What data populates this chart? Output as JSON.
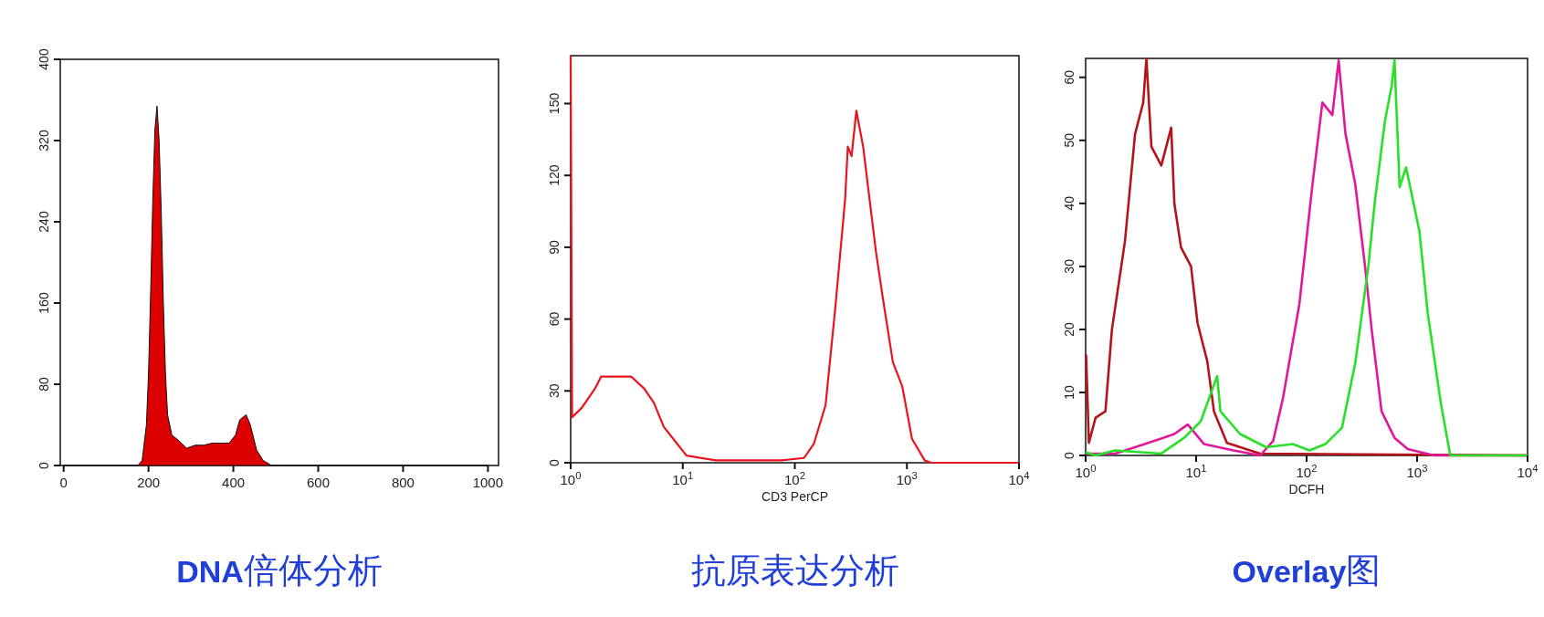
{
  "chart_data": [
    {
      "type": "area",
      "title": "DNA倍体分析",
      "xlim": [
        -8,
        1025
      ],
      "ylim": [
        0,
        400
      ],
      "xticks": [
        0,
        200,
        400,
        600,
        800,
        1000
      ],
      "yticks": [
        0,
        80,
        160,
        240,
        320,
        400
      ],
      "x": [
        0,
        175,
        185,
        195,
        200,
        205,
        210,
        215,
        220,
        225,
        230,
        235,
        240,
        245,
        255,
        270,
        290,
        310,
        330,
        350,
        370,
        390,
        405,
        415,
        430,
        440,
        455,
        470,
        490,
        1000
      ],
      "series": [
        {
          "color": "#dd0000",
          "values": [
            0,
            0,
            5,
            40,
            90,
            170,
            260,
            330,
            354,
            320,
            250,
            160,
            90,
            50,
            30,
            25,
            17,
            20,
            20,
            22,
            22,
            22,
            30,
            45,
            50,
            40,
            15,
            5,
            0,
            0
          ]
        }
      ]
    },
    {
      "type": "line",
      "title": "抗原表达分析",
      "xlabel": "CD3 PerCP",
      "log": "x",
      "xlim": [
        1,
        10000
      ],
      "ylim": [
        0,
        170
      ],
      "xticks": [
        {
          "value": 1,
          "label": "10$^{0}$"
        },
        {
          "value": 10,
          "label": "10$^{1}$"
        },
        {
          "value": 100,
          "label": "10$^{2}$"
        },
        {
          "value": 1000,
          "label": "10$^{3}$"
        },
        {
          "value": 10000,
          "label": "10$^{4}$"
        }
      ],
      "yticks": [
        0,
        30,
        60,
        90,
        120,
        150
      ],
      "x": [
        1,
        1.03,
        1.26,
        1.65,
        1.87,
        2.47,
        3.46,
        4.52,
        5.53,
        6.77,
        8.88,
        10.8,
        19.8,
        75.8,
        121,
        148,
        188,
        230,
        281,
        297,
        321,
        354,
        407,
        530,
        609,
        750,
        908,
        1110,
        1440,
        1650,
        10000
      ],
      "series": [
        {
          "color": "#e8141e",
          "values": [
            170,
            19,
            23,
            31,
            36,
            36,
            36,
            31,
            25,
            15,
            8,
            3,
            1,
            1,
            2,
            8,
            24,
            65,
            110,
            132,
            128,
            147,
            132,
            88,
            69,
            42,
            32,
            10,
            1,
            0,
            0
          ]
        }
      ]
    },
    {
      "type": "line",
      "title": "Overlay图",
      "xlabel": "DCFH",
      "log": "x",
      "xlim": [
        1,
        10000
      ],
      "ylim": [
        0,
        63
      ],
      "xticks": [
        {
          "value": 1,
          "label": "10$^{0}$"
        },
        {
          "value": 10,
          "label": "10$^{1}$"
        },
        {
          "value": 100,
          "label": "10$^{2}$"
        },
        {
          "value": 1000,
          "label": "10$^{3}$"
        },
        {
          "value": 10000,
          "label": "10$^{4}$"
        }
      ],
      "yticks": [
        0,
        10,
        20,
        30,
        40,
        50,
        60
      ],
      "series": [
        {
          "color": "#b4141a",
          "x": [
            1.01,
            1.07,
            1.23,
            1.51,
            1.73,
            2.27,
            2.8,
            3.32,
            3.55,
            3.94,
            4.84,
            5.95,
            6.35,
            7.3,
            9,
            10.3,
            12.6,
            14.5,
            19,
            38,
            10000
          ],
          "values": [
            16,
            2,
            6,
            7,
            20,
            34,
            51,
            56,
            63,
            49,
            46,
            52,
            40,
            33,
            30,
            21,
            15,
            7,
            2,
            0.3,
            0
          ]
        },
        {
          "color": "#e0189a",
          "x": [
            1,
            1.85,
            3.43,
            6.35,
            8.4,
            11.8,
            21.8,
            38,
            49.8,
            61,
            86,
            113,
            139,
            171,
            195,
            225,
            276,
            338,
            388,
            477,
            625,
            823,
            1430,
            10000
          ],
          "values": [
            0.3,
            0.3,
            1.8,
            3.4,
            4.9,
            1.8,
            0.8,
            0,
            2.3,
            9,
            24,
            43,
            56,
            54,
            62.7,
            51,
            43,
            30,
            20,
            7,
            2.8,
            1,
            0,
            0
          ]
        },
        {
          "color": "#28e028",
          "x": [
            1,
            1.23,
            1.85,
            4.84,
            7.8,
            11,
            15.5,
            16.6,
            25,
            43,
            75,
            106,
            148,
            209,
            276,
            362,
            416,
            511,
            588,
            625,
            695,
            795,
            1050,
            1250,
            1650,
            2000,
            10000
          ],
          "values": [
            0.5,
            0,
            0.8,
            0.3,
            2.8,
            5.4,
            12.6,
            7,
            3.4,
            1.3,
            1.8,
            0.8,
            1.8,
            4.4,
            14.7,
            30,
            40.5,
            53,
            58.6,
            62.7,
            42.6,
            45.7,
            35.6,
            22.5,
            8,
            0,
            0
          ]
        }
      ]
    }
  ]
}
